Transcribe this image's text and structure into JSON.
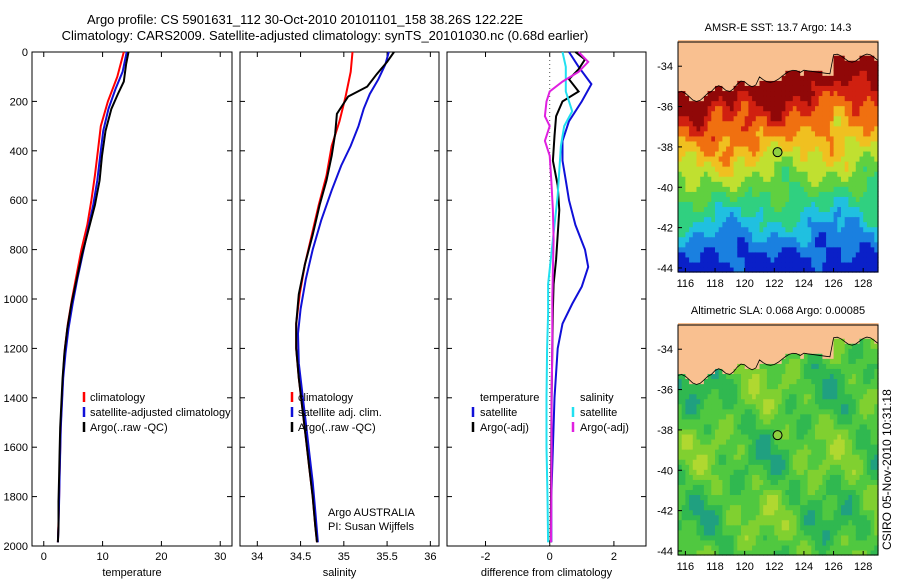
{
  "header": {
    "line1": "Argo profile: CS 5901631_112 30-Oct-2010 20101101_158 38.26S 122.22E",
    "line2": "Climatology: CARS2009. Satellite-adjusted climatology: synTS_20101030.nc (0.68d earlier)"
  },
  "stamp": "CSIRO 05-Nov-2010 10:31:18",
  "colors": {
    "red": "#ff0000",
    "blue": "#1010d8",
    "black": "#000000",
    "magenta": "#e020e0",
    "cyan": "#20e0f0",
    "land": "#f9c090"
  },
  "chart_data": [
    {
      "type": "line",
      "xlabel": "temperature",
      "ylabel": "",
      "xlim": [
        -2,
        32
      ],
      "ylim": [
        2000,
        0
      ],
      "xticks": [
        0,
        10,
        20,
        30
      ],
      "yticks": [
        0,
        200,
        400,
        600,
        800,
        1000,
        1200,
        1400,
        1600,
        1800,
        2000
      ],
      "legend": {
        "position": "lower-right",
        "entries": [
          "climatology",
          "satellite-adjusted climatology",
          "Argo(..raw -QC)"
        ]
      },
      "series": [
        {
          "name": "climatology",
          "color": "#ff0000",
          "points": [
            [
              13.6,
              0
            ],
            [
              12.5,
              100
            ],
            [
              10.9,
              200
            ],
            [
              9.7,
              300
            ],
            [
              9.2,
              400
            ],
            [
              8.7,
              500
            ],
            [
              8.1,
              600
            ],
            [
              7.4,
              700
            ],
            [
              6.4,
              800
            ],
            [
              5.6,
              900
            ],
            [
              4.8,
              1000
            ],
            [
              4.1,
              1100
            ],
            [
              3.6,
              1200
            ],
            [
              3.3,
              1300
            ],
            [
              3.1,
              1400
            ],
            [
              2.9,
              1500
            ],
            [
              2.8,
              1600
            ],
            [
              2.7,
              1700
            ],
            [
              2.6,
              1800
            ],
            [
              2.5,
              1900
            ],
            [
              2.4,
              1985
            ]
          ]
        },
        {
          "name": "satellite-adjusted climatology",
          "color": "#1010d8",
          "points": [
            [
              14.1,
              0
            ],
            [
              13.4,
              80
            ],
            [
              12.2,
              150
            ],
            [
              11.0,
              230
            ],
            [
              10.1,
              320
            ],
            [
              9.6,
              420
            ],
            [
              9.1,
              520
            ],
            [
              8.4,
              620
            ],
            [
              7.5,
              720
            ],
            [
              6.6,
              820
            ],
            [
              5.7,
              920
            ],
            [
              4.9,
              1020
            ],
            [
              4.2,
              1120
            ],
            [
              3.7,
              1220
            ],
            [
              3.3,
              1320
            ],
            [
              3.1,
              1420
            ],
            [
              2.9,
              1520
            ],
            [
              2.8,
              1620
            ],
            [
              2.7,
              1720
            ],
            [
              2.6,
              1820
            ],
            [
              2.5,
              1920
            ],
            [
              2.4,
              1985
            ]
          ]
        },
        {
          "name": "Argo(..raw -QC)",
          "color": "#000000",
          "points": [
            [
              14.4,
              0
            ],
            [
              14.0,
              50
            ],
            [
              13.6,
              120
            ],
            [
              12.6,
              170
            ],
            [
              11.5,
              230
            ],
            [
              10.5,
              320
            ],
            [
              9.9,
              420
            ],
            [
              9.5,
              520
            ],
            [
              8.7,
              620
            ],
            [
              7.6,
              720
            ],
            [
              6.5,
              820
            ],
            [
              5.6,
              920
            ],
            [
              4.7,
              1020
            ],
            [
              4.0,
              1120
            ],
            [
              3.5,
              1220
            ],
            [
              3.2,
              1320
            ],
            [
              3.0,
              1420
            ],
            [
              2.8,
              1520
            ],
            [
              2.7,
              1620
            ],
            [
              2.6,
              1720
            ],
            [
              2.5,
              1820
            ],
            [
              2.5,
              1920
            ],
            [
              2.4,
              1985
            ]
          ]
        }
      ]
    },
    {
      "type": "line",
      "xlabel": "salinity",
      "ylabel": "",
      "xlim": [
        33.8,
        36.1
      ],
      "ylim": [
        2000,
        0
      ],
      "xticks": [
        34,
        34.5,
        35,
        35.5,
        36
      ],
      "annotation": [
        "Argo AUSTRALIA",
        "PI: Susan Wijffels"
      ],
      "legend": {
        "position": "lower-right",
        "entries": [
          "climatology",
          "satellite adj. clim.",
          "Argo(..raw -QC)"
        ]
      },
      "series": [
        {
          "name": "climatology",
          "color": "#ff0000",
          "points": [
            [
              35.1,
              0
            ],
            [
              35.08,
              80
            ],
            [
              35.02,
              180
            ],
            [
              34.95,
              280
            ],
            [
              34.86,
              380
            ],
            [
              34.8,
              500
            ],
            [
              34.71,
              620
            ],
            [
              34.63,
              740
            ],
            [
              34.55,
              860
            ],
            [
              34.49,
              980
            ],
            [
              34.45,
              1100
            ],
            [
              34.45,
              1200
            ],
            [
              34.48,
              1320
            ],
            [
              34.52,
              1440
            ],
            [
              34.56,
              1560
            ],
            [
              34.6,
              1680
            ],
            [
              34.64,
              1800
            ],
            [
              34.67,
              1920
            ],
            [
              34.69,
              1985
            ]
          ]
        },
        {
          "name": "satellite adj. clim.",
          "color": "#1010d8",
          "points": [
            [
              35.52,
              0
            ],
            [
              35.48,
              50
            ],
            [
              35.4,
              110
            ],
            [
              35.3,
              170
            ],
            [
              35.23,
              230
            ],
            [
              35.17,
              300
            ],
            [
              35.08,
              380
            ],
            [
              34.97,
              460
            ],
            [
              34.86,
              560
            ],
            [
              34.74,
              680
            ],
            [
              34.64,
              800
            ],
            [
              34.56,
              920
            ],
            [
              34.5,
              1040
            ],
            [
              34.47,
              1140
            ],
            [
              34.48,
              1260
            ],
            [
              34.52,
              1380
            ],
            [
              34.56,
              1500
            ],
            [
              34.6,
              1620
            ],
            [
              34.64,
              1740
            ],
            [
              34.67,
              1860
            ],
            [
              34.7,
              1985
            ]
          ]
        },
        {
          "name": "Argo(..raw -QC)",
          "color": "#000000",
          "points": [
            [
              35.58,
              0
            ],
            [
              35.5,
              40
            ],
            [
              35.38,
              90
            ],
            [
              35.27,
              140
            ],
            [
              35.05,
              180
            ],
            [
              34.92,
              250
            ],
            [
              34.9,
              330
            ],
            [
              34.86,
              420
            ],
            [
              34.8,
              520
            ],
            [
              34.72,
              620
            ],
            [
              34.64,
              740
            ],
            [
              34.55,
              860
            ],
            [
              34.48,
              980
            ],
            [
              34.45,
              1100
            ],
            [
              34.45,
              1200
            ],
            [
              34.48,
              1320
            ],
            [
              34.52,
              1440
            ],
            [
              34.56,
              1560
            ],
            [
              34.6,
              1680
            ],
            [
              34.64,
              1800
            ],
            [
              34.67,
              1920
            ],
            [
              34.69,
              1985
            ]
          ]
        }
      ]
    },
    {
      "type": "line",
      "xlabel": "difference from climatology",
      "ylabel": "",
      "xlim": [
        -3.2,
        3.0
      ],
      "ylim": [
        2000,
        0
      ],
      "xticks": [
        -2,
        0,
        2
      ],
      "legend": {
        "position": "lower-right",
        "temperature_title": "temperature",
        "salinity_title": "salinity",
        "entries": [
          "satellite",
          "Argo(-adj)",
          "satellite",
          "Argo(-adj)"
        ]
      },
      "series": [
        {
          "name": "temperature satellite",
          "color": "#1010d8",
          "points": [
            [
              0.6,
              0
            ],
            [
              0.9,
              60
            ],
            [
              1.3,
              130
            ],
            [
              1.0,
              200
            ],
            [
              0.6,
              280
            ],
            [
              0.4,
              360
            ],
            [
              0.4,
              440
            ],
            [
              0.5,
              520
            ],
            [
              0.6,
              600
            ],
            [
              0.8,
              700
            ],
            [
              1.1,
              800
            ],
            [
              1.2,
              870
            ],
            [
              1.0,
              950
            ],
            [
              0.7,
              1020
            ],
            [
              0.4,
              1100
            ],
            [
              0.25,
              1200
            ],
            [
              0.15,
              1400
            ],
            [
              0.1,
              1600
            ],
            [
              0.05,
              1800
            ],
            [
              0.05,
              1985
            ]
          ]
        },
        {
          "name": "temperature Argo(-adj)",
          "color": "#000000",
          "points": [
            [
              0.8,
              0
            ],
            [
              1.1,
              30
            ],
            [
              0.9,
              70
            ],
            [
              0.6,
              110
            ],
            [
              0.9,
              160
            ],
            [
              0.4,
              200
            ],
            [
              0.2,
              260
            ],
            [
              0.15,
              340
            ],
            [
              0.1,
              440
            ],
            [
              0.25,
              540
            ],
            [
              0.3,
              640
            ],
            [
              0.25,
              740
            ],
            [
              0.2,
              840
            ],
            [
              0.12,
              940
            ],
            [
              0.1,
              1040
            ],
            [
              0.08,
              1200
            ],
            [
              0.06,
              1400
            ],
            [
              0.05,
              1600
            ],
            [
              0.04,
              1800
            ],
            [
              0.03,
              1985
            ]
          ]
        },
        {
          "name": "salinity satellite",
          "color": "#20e0f0",
          "points": [
            [
              0.4,
              0
            ],
            [
              0.5,
              60
            ],
            [
              0.5,
              160
            ],
            [
              0.7,
              240
            ],
            [
              0.45,
              300
            ],
            [
              0.35,
              380
            ],
            [
              0.3,
              480
            ],
            [
              0.25,
              580
            ],
            [
              0.15,
              700
            ],
            [
              0.05,
              820
            ],
            [
              -0.05,
              940
            ],
            [
              -0.05,
              1060
            ],
            [
              -0.08,
              1200
            ],
            [
              -0.1,
              1400
            ],
            [
              -0.1,
              1600
            ],
            [
              -0.07,
              1800
            ],
            [
              -0.05,
              1985
            ]
          ]
        },
        {
          "name": "salinity Argo(-adj)",
          "color": "#e020e0",
          "points": [
            [
              0.9,
              0
            ],
            [
              1.2,
              40
            ],
            [
              0.9,
              80
            ],
            [
              0.4,
              120
            ],
            [
              0.0,
              160
            ],
            [
              -0.1,
              200
            ],
            [
              -0.15,
              260
            ],
            [
              0.0,
              300
            ],
            [
              -0.15,
              360
            ],
            [
              0.0,
              420
            ],
            [
              0.05,
              520
            ],
            [
              0.1,
              640
            ],
            [
              0.12,
              760
            ],
            [
              0.1,
              880
            ],
            [
              0.08,
              1000
            ],
            [
              0.08,
              1200
            ],
            [
              0.06,
              1400
            ],
            [
              0.06,
              1600
            ],
            [
              0.05,
              1800
            ],
            [
              0.04,
              1985
            ]
          ]
        }
      ]
    },
    {
      "type": "heatmap",
      "title": "AMSR-E SST: 13.7 Argo: 14.3",
      "xlim": [
        115.5,
        129
      ],
      "ylim": [
        -44.2,
        -32.8
      ],
      "xticks": [
        116,
        118,
        120,
        122,
        124,
        126,
        128
      ],
      "yticks": [
        -34,
        -36,
        -38,
        -40,
        -42,
        -44
      ],
      "profile_location": [
        122.22,
        -38.26
      ],
      "palette": [
        "#0a20c8",
        "#1a80e0",
        "#20c0e0",
        "#30d080",
        "#60d040",
        "#c0e030",
        "#f0c020",
        "#f07010",
        "#d02010",
        "#900808"
      ]
    },
    {
      "type": "heatmap",
      "title": "Altimetric SLA: 0.068 Argo: 0.00085",
      "xlim": [
        115.5,
        129
      ],
      "ylim": [
        -44.2,
        -32.8
      ],
      "xticks": [
        116,
        118,
        120,
        122,
        124,
        126,
        128
      ],
      "yticks": [
        -34,
        -36,
        -38,
        -40,
        -42,
        -44
      ],
      "profile_location": [
        122.22,
        -38.26
      ],
      "palette": [
        "#20a080",
        "#30b850",
        "#50c840",
        "#80d030",
        "#b0d830",
        "#e0c030",
        "#f08030"
      ]
    }
  ]
}
